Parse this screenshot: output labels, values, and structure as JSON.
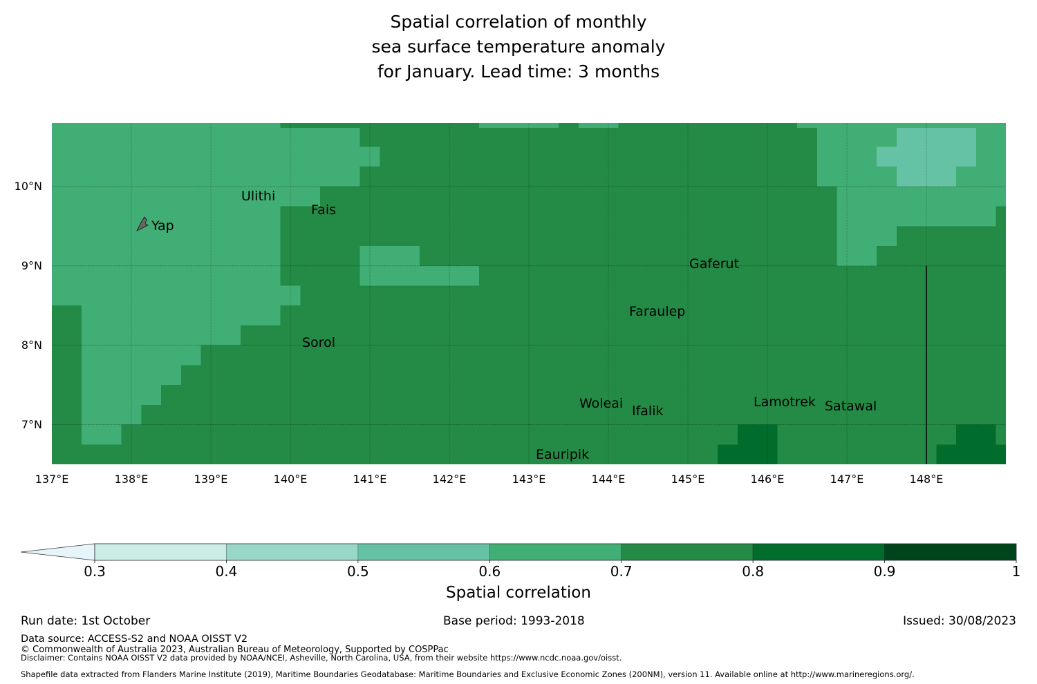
{
  "title": "Spatial correlation of monthly\nsea surface temperature anomaly\n for January. Lead time: 3 months",
  "chart_data": {
    "type": "heatmap",
    "title": "Spatial correlation of monthly sea surface temperature anomaly for January. Lead time: 3 months",
    "xlim": [
      137,
      149
    ],
    "ylim": [
      6.5,
      10.8
    ],
    "grid": true,
    "x_ticks": [
      137,
      138,
      139,
      140,
      141,
      142,
      143,
      144,
      145,
      146,
      147,
      148
    ],
    "x_tick_labels": [
      "137°E",
      "138°E",
      "139°E",
      "140°E",
      "141°E",
      "142°E",
      "143°E",
      "144°E",
      "145°E",
      "146°E",
      "147°E",
      "148°E"
    ],
    "y_ticks": [
      10,
      9,
      8,
      7
    ],
    "y_tick_labels": [
      "10°N",
      "9°N",
      "8°N",
      "7°N"
    ],
    "cell_size_deg": 0.25,
    "background_value_class": "0.7-0.8",
    "regions": [
      {
        "class": "0.6-0.7",
        "lon": [
          137,
          139.875
        ],
        "lat": [
          10.74,
          10.8
        ]
      },
      {
        "class": "0.6-0.7",
        "lon": [
          137,
          140.875
        ],
        "lat": [
          10,
          10.74
        ]
      },
      {
        "class": "0.6-0.7",
        "lon": [
          140.875,
          141.125
        ],
        "lat": [
          10.25,
          10.5
        ]
      },
      {
        "class": "0.6-0.7",
        "lon": [
          137,
          140.375
        ],
        "lat": [
          9.75,
          10
        ]
      },
      {
        "class": "0.6-0.7",
        "lon": [
          137,
          139.875
        ],
        "lat": [
          8.75,
          9.75
        ]
      },
      {
        "class": "0.6-0.7",
        "lon": [
          137,
          140.125
        ],
        "lat": [
          8.5,
          8.75
        ]
      },
      {
        "class": "0.6-0.7",
        "lon": [
          137.375,
          139.875
        ],
        "lat": [
          8.25,
          8.5
        ]
      },
      {
        "class": "0.6-0.7",
        "lon": [
          137.375,
          139.375
        ],
        "lat": [
          8,
          8.25
        ]
      },
      {
        "class": "0.6-0.7",
        "lon": [
          137.375,
          138.875
        ],
        "lat": [
          7.75,
          8
        ]
      },
      {
        "class": "0.6-0.7",
        "lon": [
          137.375,
          138.625
        ],
        "lat": [
          7.5,
          7.75
        ]
      },
      {
        "class": "0.6-0.7",
        "lon": [
          137.375,
          138.375
        ],
        "lat": [
          7.25,
          7.5
        ]
      },
      {
        "class": "0.6-0.7",
        "lon": [
          137.375,
          138.125
        ],
        "lat": [
          7,
          7.25
        ]
      },
      {
        "class": "0.6-0.7",
        "lon": [
          137.375,
          137.875
        ],
        "lat": [
          6.75,
          7
        ]
      },
      {
        "class": "0.6-0.7",
        "lon": [
          140.875,
          141.625
        ],
        "lat": [
          9,
          9.25
        ]
      },
      {
        "class": "0.6-0.7",
        "lon": [
          140.875,
          142.375
        ],
        "lat": [
          8.75,
          9
        ]
      },
      {
        "class": "0.6-0.7",
        "lon": [
          142.375,
          143.375
        ],
        "lat": [
          10.74,
          10.8
        ]
      },
      {
        "class": "0.6-0.7",
        "lon": [
          143.625,
          144.125
        ],
        "lat": [
          10.74,
          10.8
        ]
      },
      {
        "class": "0.6-0.7",
        "lon": [
          146.375,
          149
        ],
        "lat": [
          10.74,
          10.8
        ]
      },
      {
        "class": "0.6-0.7",
        "lon": [
          146.625,
          149
        ],
        "lat": [
          10,
          10.74
        ]
      },
      {
        "class": "0.6-0.7",
        "lon": [
          146.875,
          149
        ],
        "lat": [
          9.75,
          10
        ]
      },
      {
        "class": "0.6-0.7",
        "lon": [
          146.875,
          148.875
        ],
        "lat": [
          9.5,
          9.75
        ]
      },
      {
        "class": "0.6-0.7",
        "lon": [
          146.875,
          147.625
        ],
        "lat": [
          9.25,
          9.5
        ]
      },
      {
        "class": "0.6-0.7",
        "lon": [
          146.875,
          147.375
        ],
        "lat": [
          9,
          9.25
        ]
      },
      {
        "class": "0.5-0.6",
        "lon": [
          147.625,
          148.625
        ],
        "lat": [
          10.5,
          10.74
        ]
      },
      {
        "class": "0.5-0.6",
        "lon": [
          147.375,
          148.625
        ],
        "lat": [
          10.25,
          10.5
        ]
      },
      {
        "class": "0.5-0.6",
        "lon": [
          147.625,
          148.375
        ],
        "lat": [
          10,
          10.25
        ]
      },
      {
        "class": "0.8-0.9",
        "lon": [
          145.625,
          146.125
        ],
        "lat": [
          6.75,
          7
        ]
      },
      {
        "class": "0.8-0.9",
        "lon": [
          145.375,
          146.125
        ],
        "lat": [
          6.5,
          6.75
        ]
      },
      {
        "class": "0.8-0.9",
        "lon": [
          148.375,
          148.875
        ],
        "lat": [
          6.75,
          7
        ]
      },
      {
        "class": "0.8-0.9",
        "lon": [
          148.125,
          149
        ],
        "lat": [
          6.5,
          6.75
        ]
      }
    ],
    "boundary_lines": [
      {
        "name": "eez-boundary",
        "lon": [
          148,
          148
        ],
        "lat": [
          6.5,
          9
        ]
      }
    ],
    "places": [
      {
        "name": "Yap",
        "lon": 138.25,
        "lat": 9.5
      },
      {
        "name": "Ulithi",
        "lon": 139.72,
        "lat": 9.92
      },
      {
        "name": "Fais",
        "label": "Faīs",
        "lon": 140.52,
        "lat": 9.76
      },
      {
        "name": "Gaferut",
        "label": "Gaferut",
        "lon": 145.38,
        "lat": 9.23
      },
      {
        "name": "Faraulep",
        "label": "Faraulep",
        "lon": 144.52,
        "lat": 8.6
      },
      {
        "name": "Sorol",
        "label": "Sorol",
        "lon": 140.39,
        "lat": 8.14
      },
      {
        "name": "Woleai",
        "label": "Woleai",
        "lon": 143.91,
        "lat": 7.36
      },
      {
        "name": "Ifalik",
        "label": "Ifalik",
        "lon": 144.45,
        "lat": 7.25
      },
      {
        "name": "Lamotrek",
        "label": "Lamotrek",
        "lon": 146.38,
        "lat": 7.5
      },
      {
        "name": "Satawal",
        "label": "Satawal",
        "lon": 147.03,
        "lat": 7.37
      },
      {
        "name": "Eauripik",
        "label": "Eauripik",
        "lon": 143.08,
        "lat": 6.7
      }
    ],
    "colorbar": {
      "label": "Spatial correlation",
      "extend": "min",
      "bounds": [
        0.3,
        0.4,
        0.5,
        0.6,
        0.7,
        0.8,
        0.9,
        1.0
      ],
      "tick_labels": [
        "0.3",
        "0.4",
        "0.5",
        "0.6",
        "0.7",
        "0.8",
        "0.9",
        "1"
      ],
      "under_color": "#e5f5f9",
      "colors": [
        "#ccece6",
        "#99d8c9",
        "#66c2a4",
        "#41ae76",
        "#238b45",
        "#006d2c",
        "#00441b"
      ],
      "classes": [
        "0.3-0.4",
        "0.4-0.5",
        "0.5-0.6",
        "0.6-0.7",
        "0.7-0.8",
        "0.8-0.9",
        "0.9-1"
      ]
    }
  },
  "places_labels": {
    "yap": "Yap",
    "ulithi": "Ulithi",
    "fais": "Fais",
    "gaferut": "Gaferut",
    "faraulep": "Faraulep",
    "sorol": "Sorol",
    "woleai": "Woleai",
    "ifalik": "Ifalik",
    "lamotrek": "Lamotrek",
    "satawal": "Satawal",
    "eauripik": "Eauripik"
  },
  "footer": {
    "run_date": "Run date: 1st October",
    "base_period": "Base period: 1993-2018",
    "issued": "Issued: 30/08/2023",
    "data_source": "Data source: ACCESS-S2 and NOAA OISST V2",
    "copyright": "© Commonwealth of Australia 2023, Australian Bureau of Meteorology, Supported by COSPPac",
    "disclaimer": "Disclaimer: Contains NOAA OISST V2 data provided by NOAA/NCEI, Asheville, North Carolina, USA, from their website https://www.ncdc.noaa.gov/oisst.",
    "shapefile": "Shapefile data extracted from Flanders Marine Institute (2019), Maritime Boundaries Geodatabase: Maritime Boundaries and Exclusive Economic Zones (200NM), version 11. Available online at http://www.marineregions.org/."
  }
}
